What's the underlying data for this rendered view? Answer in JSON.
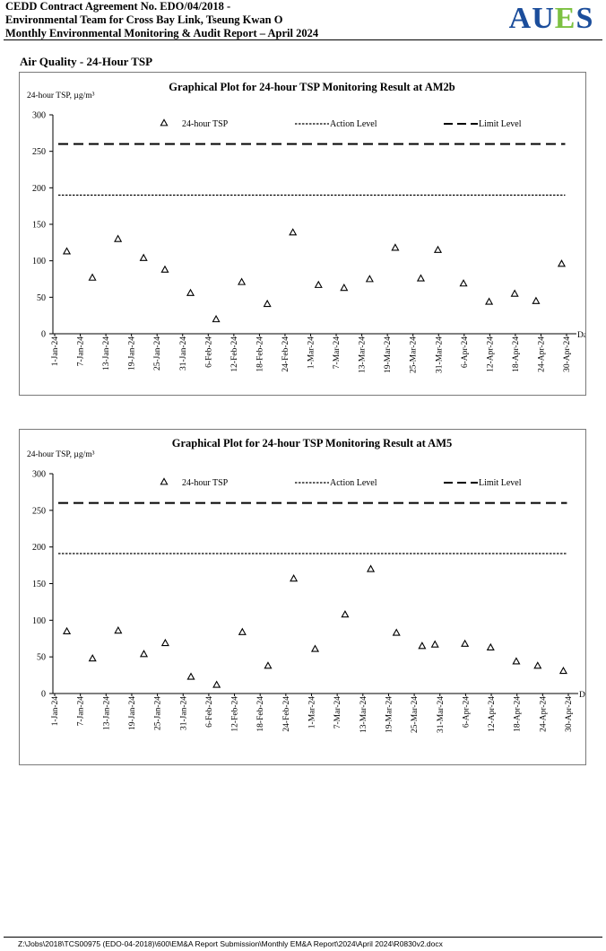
{
  "header": {
    "line1": "CEDD Contract Agreement No. EDO/04/2018 -",
    "line2": "Environmental Team for Cross Bay Link, Tseung Kwan O",
    "line3": "Monthly Environmental Monitoring & Audit Report – April 2024",
    "logo_text": "AUES",
    "logo_colors": {
      "A": "#1b4d9b",
      "U": "#1b4d9b",
      "E": "#7dc142",
      "S": "#1b4d9b"
    }
  },
  "section_title": "Air Quality - 24-Hour TSP",
  "footer": {
    "path": "Z:\\Jobs\\2018\\TCS00975 (EDO-04-2018)\\600\\EM&A Report Submission\\Monthly EM&A Report\\2024\\April 2024\\R0830v2.docx"
  },
  "chart_data": [
    {
      "type": "scatter",
      "title": "Graphical Plot for 24-hour TSP Monitoring Result at AM2b",
      "ylabel": "24-hour TSP, µg/m³",
      "xlabel": "Date",
      "ylim": [
        0,
        300
      ],
      "yticks": [
        0,
        50,
        100,
        150,
        200,
        250,
        300
      ],
      "xlim": [
        "2024-01-01",
        "2024-04-30"
      ],
      "xticks": [
        "1-Jan-24",
        "7-Jan-24",
        "13-Jan-24",
        "19-Jan-24",
        "25-Jan-24",
        "31-Jan-24",
        "6-Feb-24",
        "12-Feb-24",
        "18-Feb-24",
        "24-Feb-24",
        "1-Mar-24",
        "7-Mar-24",
        "13-Mar-24",
        "19-Mar-24",
        "25-Mar-24",
        "31-Mar-24",
        "6-Apr-24",
        "12-Apr-24",
        "18-Apr-24",
        "24-Apr-24",
        "30-Apr-24"
      ],
      "grid": false,
      "legend": [
        "24-hour TSP",
        "Action Level",
        "Limit Level"
      ],
      "legend_placement": "top",
      "action_level": 190,
      "limit_level": 260,
      "series": [
        {
          "name": "24-hour TSP",
          "points": [
            [
              "2024-01-03",
              113
            ],
            [
              "2024-01-09",
              77
            ],
            [
              "2024-01-15",
              130
            ],
            [
              "2024-01-21",
              104
            ],
            [
              "2024-01-26",
              88
            ],
            [
              "2024-02-01",
              56
            ],
            [
              "2024-02-07",
              20
            ],
            [
              "2024-02-13",
              71
            ],
            [
              "2024-02-19",
              41
            ],
            [
              "2024-02-25",
              139
            ],
            [
              "2024-03-02",
              67
            ],
            [
              "2024-03-08",
              63
            ],
            [
              "2024-03-14",
              75
            ],
            [
              "2024-03-20",
              118
            ],
            [
              "2024-03-26",
              76
            ],
            [
              "2024-03-30",
              115
            ],
            [
              "2024-04-05",
              69
            ],
            [
              "2024-04-11",
              44
            ],
            [
              "2024-04-17",
              55
            ],
            [
              "2024-04-22",
              45
            ],
            [
              "2024-04-28",
              96
            ]
          ]
        }
      ]
    },
    {
      "type": "scatter",
      "title": "Graphical Plot for 24-hour TSP Monitoring Result at AM5",
      "ylabel": "24-hour TSP, µg/m³",
      "xlabel": "Date",
      "ylim": [
        0,
        300
      ],
      "yticks": [
        0,
        50,
        100,
        150,
        200,
        250,
        300
      ],
      "xlim": [
        "2024-01-01",
        "2024-04-30"
      ],
      "xticks": [
        "1-Jan-24",
        "7-Jan-24",
        "13-Jan-24",
        "19-Jan-24",
        "25-Jan-24",
        "31-Jan-24",
        "6-Feb-24",
        "12-Feb-24",
        "18-Feb-24",
        "24-Feb-24",
        "1-Mar-24",
        "7-Mar-24",
        "13-Mar-24",
        "19-Mar-24",
        "25-Mar-24",
        "31-Mar-24",
        "6-Apr-24",
        "12-Apr-24",
        "18-Apr-24",
        "24-Apr-24",
        "30-Apr-24"
      ],
      "grid": false,
      "legend": [
        "24-hour TSP",
        "Action Level",
        "Limit Level"
      ],
      "legend_placement": "top",
      "action_level": 191,
      "limit_level": 260,
      "series": [
        {
          "name": "24-hour TSP",
          "points": [
            [
              "2024-01-03",
              85
            ],
            [
              "2024-01-09",
              48
            ],
            [
              "2024-01-15",
              86
            ],
            [
              "2024-01-21",
              54
            ],
            [
              "2024-01-26",
              69
            ],
            [
              "2024-02-01",
              23
            ],
            [
              "2024-02-07",
              12
            ],
            [
              "2024-02-13",
              84
            ],
            [
              "2024-02-19",
              38
            ],
            [
              "2024-02-25",
              157
            ],
            [
              "2024-03-01",
              61
            ],
            [
              "2024-03-08",
              108
            ],
            [
              "2024-03-14",
              170
            ],
            [
              "2024-03-20",
              83
            ],
            [
              "2024-03-26",
              65
            ],
            [
              "2024-03-29",
              67
            ],
            [
              "2024-04-05",
              68
            ],
            [
              "2024-04-11",
              63
            ],
            [
              "2024-04-17",
              44
            ],
            [
              "2024-04-22",
              38
            ],
            [
              "2024-04-28",
              31
            ]
          ]
        }
      ]
    }
  ]
}
